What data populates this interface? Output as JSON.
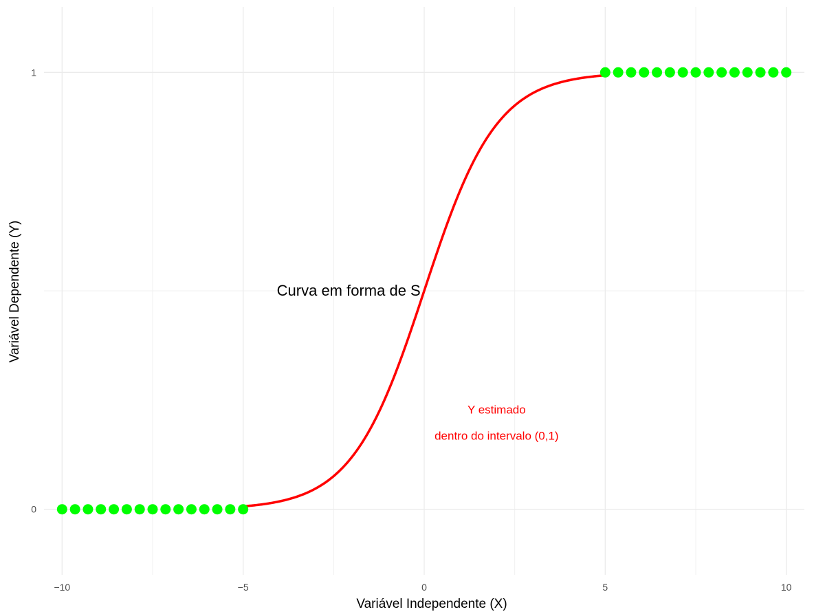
{
  "chart_data": {
    "type": "scatter",
    "xlabel": "Variável Independente (X)",
    "ylabel": "Variável Dependente (Y)",
    "xlim": [
      -10.5,
      10.5
    ],
    "ylim": [
      -0.15,
      1.15
    ],
    "x_ticks": [
      -10,
      -5,
      0,
      5,
      10
    ],
    "x_tick_labels": [
      "−10",
      "−5",
      "0",
      "5",
      "10"
    ],
    "y_ticks": [
      0,
      1
    ],
    "y_tick_labels": [
      "0",
      "1"
    ],
    "grid": true,
    "legend": "none",
    "series": [
      {
        "kind": "points",
        "color": "#00ff00",
        "x": [
          -10,
          -9.6429,
          -9.2857,
          -8.9286,
          -8.5714,
          -8.2143,
          -7.8571,
          -7.5,
          -7.1429,
          -6.7857,
          -6.4286,
          -6.0714,
          -5.7143,
          -5.3571,
          -5,
          5,
          5.3571,
          5.7143,
          6.0714,
          6.4286,
          6.7857,
          7.1429,
          7.5,
          7.8571,
          8.2143,
          8.5714,
          8.9286,
          9.2857,
          9.6429,
          10
        ],
        "y": [
          0,
          0,
          0,
          0,
          0,
          0,
          0,
          0,
          0,
          0,
          0,
          0,
          0,
          0,
          0,
          1,
          1,
          1,
          1,
          1,
          1,
          1,
          1,
          1,
          1,
          1,
          1,
          1,
          1,
          1
        ]
      },
      {
        "kind": "curve",
        "function": "logistic",
        "color": "#ff0000",
        "x_range": [
          -5,
          5
        ]
      }
    ],
    "annotations": [
      {
        "text": "Curva em forma de S",
        "x": -0.1,
        "y": 0.5,
        "color": "#000000",
        "align": "right"
      },
      {
        "text": "Y estimado",
        "x": 2.0,
        "y": 0.23,
        "color": "#ff0000",
        "align": "center"
      },
      {
        "text": "dentro do intervalo (0,1)",
        "x": 2.0,
        "y": 0.17,
        "color": "#ff0000",
        "align": "center"
      }
    ]
  }
}
